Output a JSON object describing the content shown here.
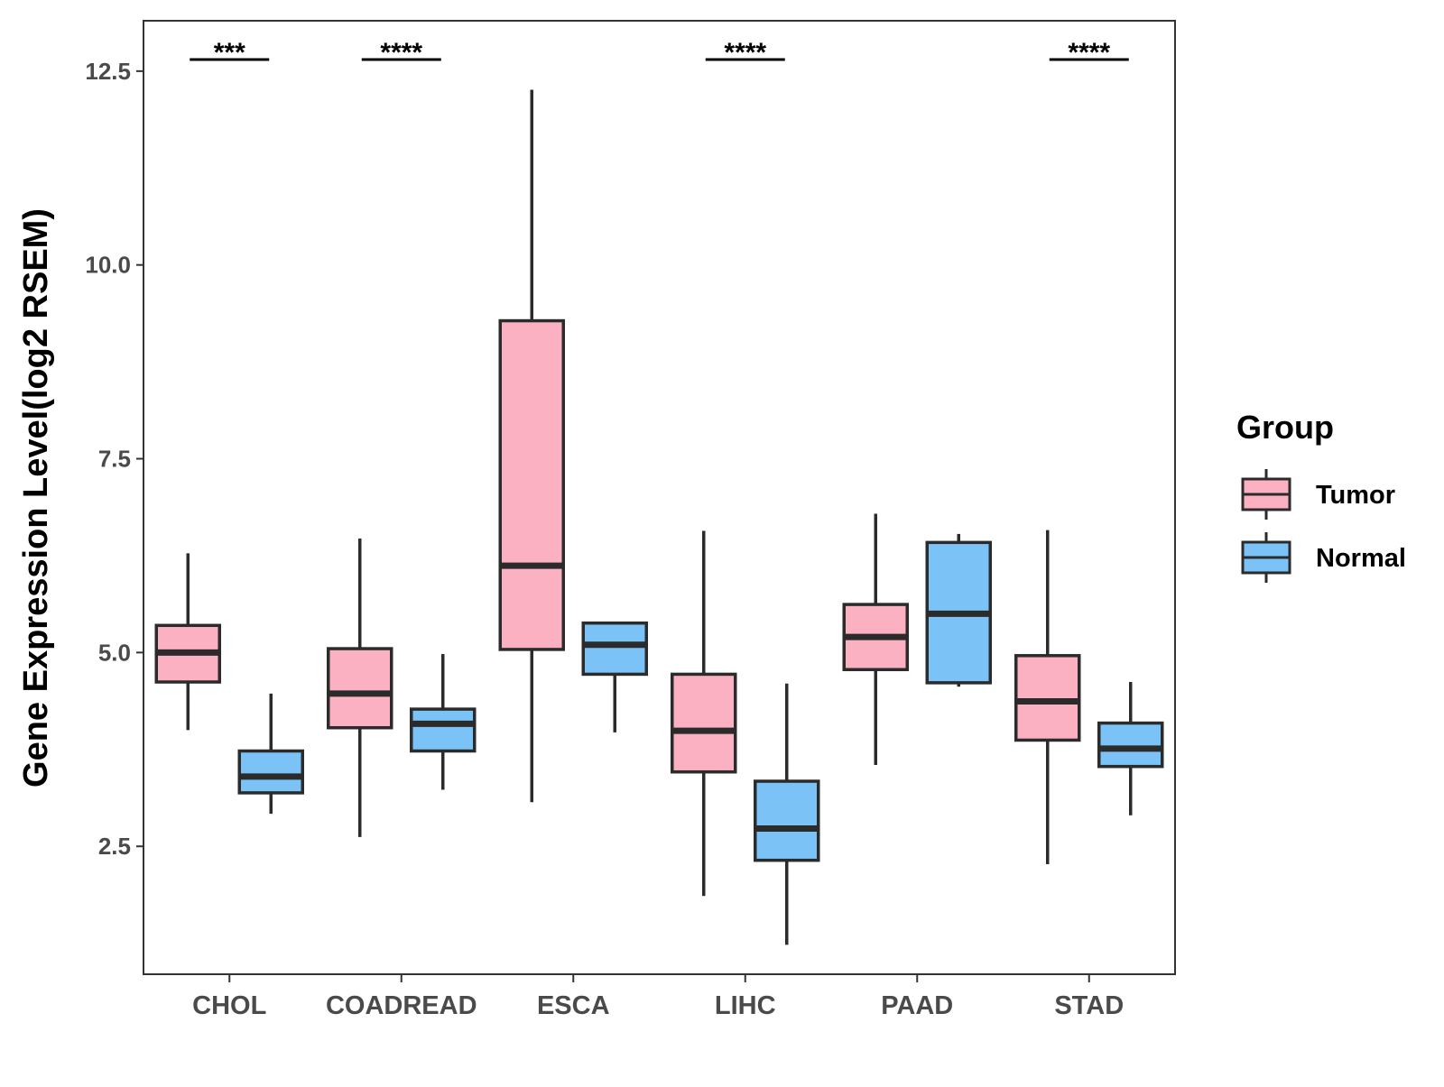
{
  "chart_data": {
    "type": "boxplot",
    "title": "",
    "xlabel": "",
    "ylabel": "Gene Expression Level(log2 RSEM)",
    "ylim": [
      0.85,
      13.15
    ],
    "yticks": [
      2.5,
      5.0,
      7.5,
      10.0,
      12.5
    ],
    "ytick_labels": [
      "2.5",
      "5.0",
      "7.5",
      "10.0",
      "12.5"
    ],
    "categories": [
      "CHOL",
      "COADREAD",
      "ESCA",
      "LIHC",
      "PAAD",
      "STAD"
    ],
    "legend": {
      "title": "Group",
      "position": "right",
      "entries": [
        {
          "name": "Tumor",
          "color": "#FBB1C2"
        },
        {
          "name": "Normal",
          "color": "#7BC3F7"
        }
      ]
    },
    "series": [
      {
        "name": "Tumor",
        "color": "#FBB1C2",
        "boxes": [
          {
            "min": 4.0,
            "q1": 4.62,
            "median": 5.0,
            "q3": 5.35,
            "max": 6.28
          },
          {
            "min": 2.62,
            "q1": 4.03,
            "median": 4.47,
            "q3": 5.05,
            "max": 6.47
          },
          {
            "min": 3.07,
            "q1": 5.04,
            "median": 6.12,
            "q3": 9.28,
            "max": 12.26
          },
          {
            "min": 1.86,
            "q1": 3.46,
            "median": 3.99,
            "q3": 4.72,
            "max": 6.57
          },
          {
            "min": 3.55,
            "q1": 4.78,
            "median": 5.2,
            "q3": 5.62,
            "max": 6.79
          },
          {
            "min": 2.27,
            "q1": 3.87,
            "median": 4.37,
            "q3": 4.96,
            "max": 6.58
          }
        ]
      },
      {
        "name": "Normal",
        "color": "#7BC3F7",
        "boxes": [
          {
            "min": 2.92,
            "q1": 3.19,
            "median": 3.4,
            "q3": 3.73,
            "max": 4.47
          },
          {
            "min": 3.23,
            "q1": 3.73,
            "median": 4.08,
            "q3": 4.27,
            "max": 4.98
          },
          {
            "min": 3.97,
            "q1": 4.72,
            "median": 5.1,
            "q3": 5.38,
            "max": 5.38
          },
          {
            "min": 1.23,
            "q1": 2.32,
            "median": 2.73,
            "q3": 3.34,
            "max": 4.6
          },
          {
            "min": 4.56,
            "q1": 4.61,
            "median": 5.5,
            "q3": 6.42,
            "max": 6.53
          },
          {
            "min": 2.9,
            "q1": 3.53,
            "median": 3.76,
            "q3": 4.09,
            "max": 4.62
          }
        ]
      }
    ],
    "significance": [
      {
        "category": "CHOL",
        "label": "***"
      },
      {
        "category": "COADREAD",
        "label": "****"
      },
      {
        "category": "LIHC",
        "label": "****"
      },
      {
        "category": "STAD",
        "label": "****"
      }
    ],
    "sig_level": 12.65
  }
}
